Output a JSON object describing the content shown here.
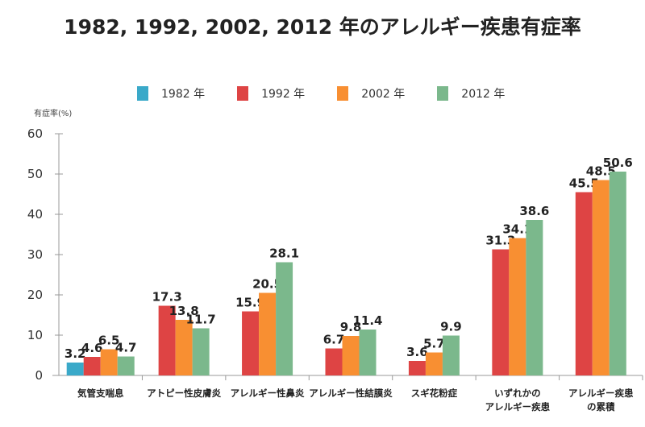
{
  "chart_data": {
    "type": "bar",
    "title": "1982, 1992, 2002, 2012 年のアレルギー疾患有症率",
    "ylabel": "有症率(%)",
    "xlabel": "",
    "ylim": [
      0,
      60
    ],
    "yticks": [
      0,
      10,
      20,
      30,
      40,
      50,
      60
    ],
    "grid": false,
    "legend_placement": "top-center",
    "categories": [
      [
        "気管支喘息"
      ],
      [
        "アトピー性皮膚炎"
      ],
      [
        "アレルギー性鼻炎"
      ],
      [
        "アレルギー性結膜炎"
      ],
      [
        "スギ花粉症"
      ],
      [
        "いずれかの",
        "アレルギー疾患"
      ],
      [
        "アレルギー疾患",
        "の累積"
      ]
    ],
    "series": [
      {
        "name": "1982 年",
        "color": "#3aa9c9",
        "values": [
          3.2,
          null,
          null,
          null,
          null,
          null,
          null
        ]
      },
      {
        "name": "1992 年",
        "color": "#de4444",
        "values": [
          4.6,
          17.3,
          15.9,
          6.7,
          3.6,
          31.3,
          45.5
        ]
      },
      {
        "name": "2002 年",
        "color": "#f88f32",
        "values": [
          6.5,
          13.8,
          20.5,
          9.8,
          5.7,
          34.1,
          48.5
        ]
      },
      {
        "name": "2012 年",
        "color": "#7bb88c",
        "values": [
          4.7,
          11.7,
          28.1,
          11.4,
          9.9,
          38.6,
          50.6
        ]
      }
    ]
  }
}
